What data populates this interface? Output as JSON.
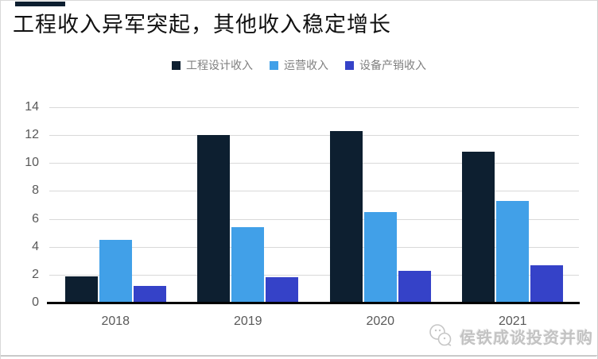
{
  "page": {
    "title": "工程收入异军突起，其他收入稳定增长"
  },
  "colors": {
    "accent_navy": "#0d1f30",
    "azure": "#41a0e8",
    "royal_blue": "#3542c8",
    "gridline": "#d9d9d9",
    "axis_line": "#000000",
    "tick_label": "#595959",
    "legend_label": "#7f7f7f",
    "watermark": "#c3c3c3"
  },
  "legend": {
    "items": [
      {
        "label": "工程设计收入"
      },
      {
        "label": "运营收入"
      },
      {
        "label": "设备产销收入"
      }
    ]
  },
  "chart_data": {
    "type": "bar",
    "categories": [
      "2018",
      "2019",
      "2020",
      "2021"
    ],
    "series": [
      {
        "name": "工程设计收入",
        "color": "#0d1f30",
        "values": [
          1.9,
          12.0,
          12.3,
          10.8
        ]
      },
      {
        "name": "运营收入",
        "color": "#41a0e8",
        "values": [
          4.5,
          5.4,
          6.5,
          7.3
        ]
      },
      {
        "name": "设备产销收入",
        "color": "#3542c8",
        "values": [
          1.2,
          1.8,
          2.3,
          2.7
        ]
      }
    ],
    "title": "工程收入异军突起，其他收入稳定增长",
    "xlabel": "",
    "ylabel": "",
    "ylim": [
      0,
      14
    ],
    "yticks": [
      0,
      2,
      4,
      6,
      8,
      10,
      12,
      14
    ],
    "grid": true,
    "legend_position": "top"
  },
  "watermark": {
    "text": "侯铁成谈投资并购",
    "icon": "mascot-logo-icon"
  }
}
